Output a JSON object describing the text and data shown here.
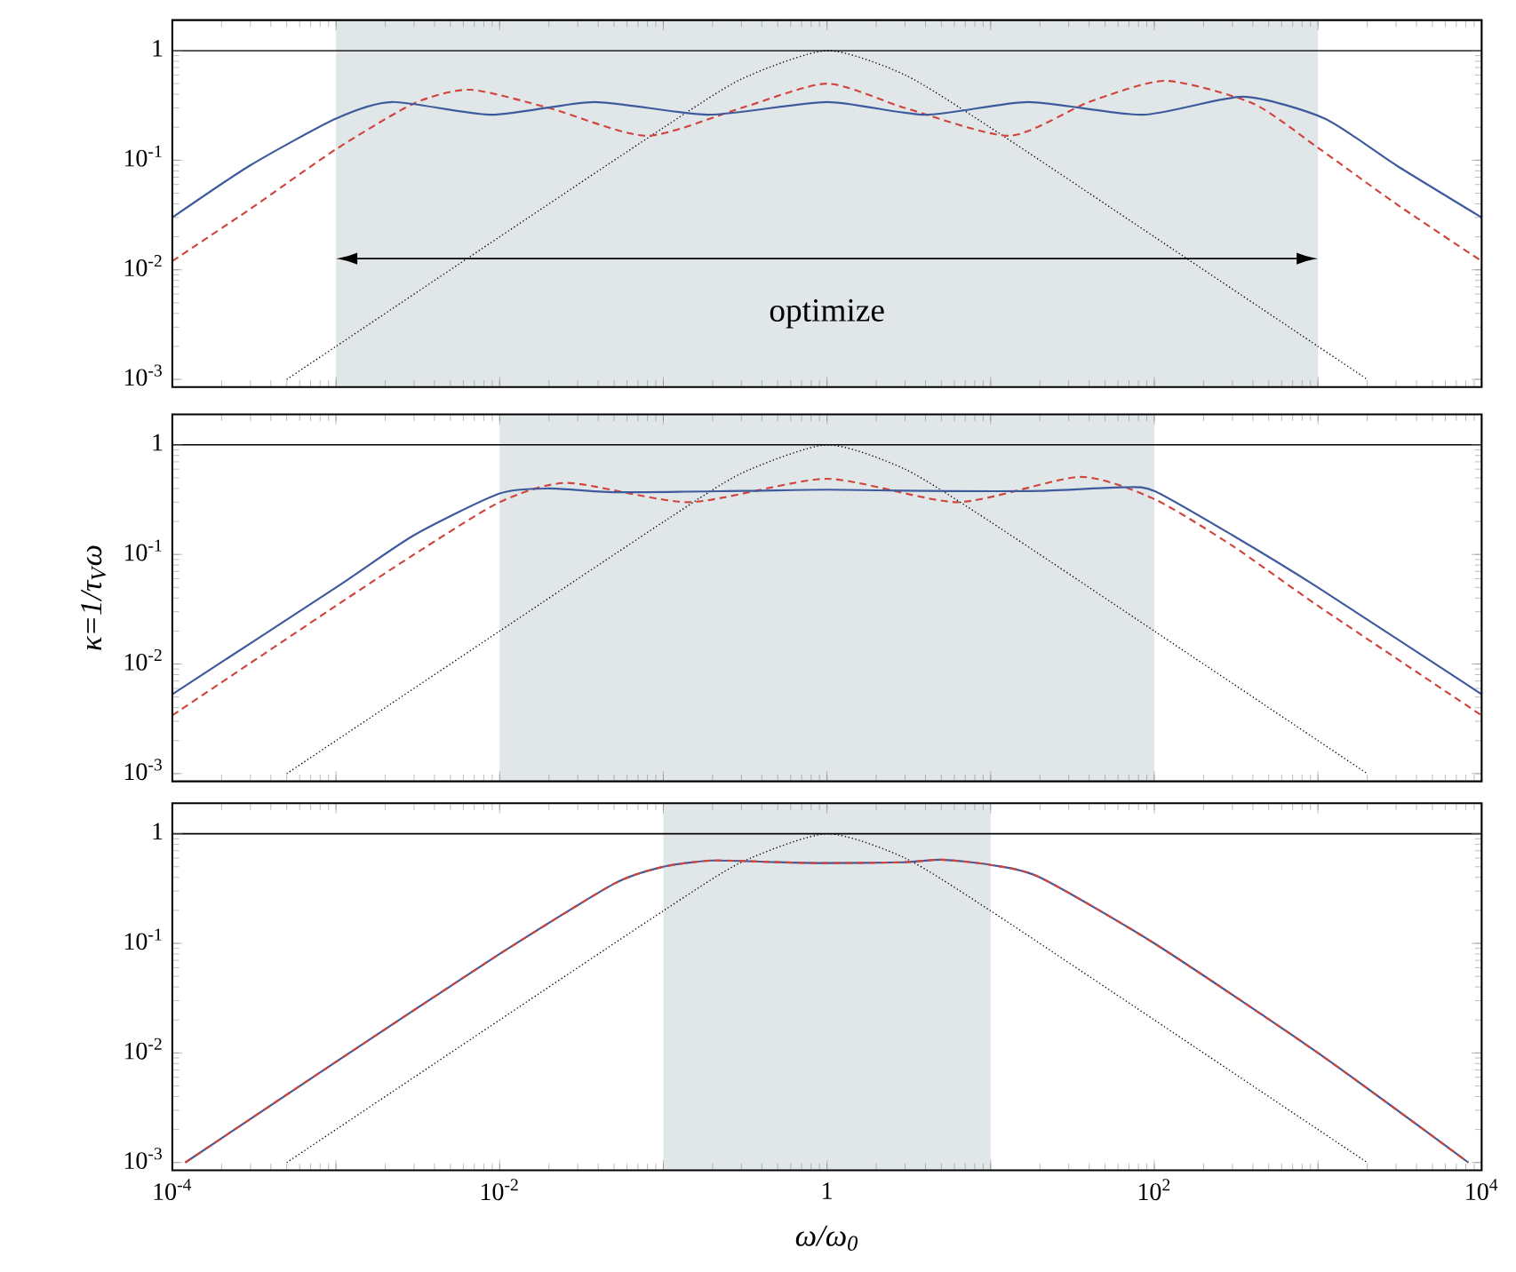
{
  "chart_data": [
    {
      "type": "line",
      "log": "xy",
      "xlim": [
        0.0001,
        10000
      ],
      "ylim": [
        0.00085,
        1.9
      ],
      "tick_labels": "y",
      "grid": false,
      "marker": "none",
      "xticks": [
        {
          "value": 0.0001,
          "label": null
        },
        {
          "value": 0.001,
          "label": null
        },
        {
          "value": 0.01,
          "label": null
        },
        {
          "value": 0.1,
          "label": null
        },
        {
          "value": 1,
          "label": null
        },
        {
          "value": 10,
          "label": null
        },
        {
          "value": 100,
          "label": null
        },
        {
          "value": 1000,
          "label": null
        },
        {
          "value": 10000,
          "label": null
        }
      ],
      "yticks": [
        {
          "value": 0.001,
          "label": "10$^{-3}$"
        },
        {
          "value": 0.01,
          "label": "10$^{-2}$"
        },
        {
          "value": 0.1,
          "label": "10$^{-1}$"
        },
        1
      ],
      "bands": [
        {
          "axis": "x",
          "from": 0.001,
          "to": 1000,
          "color": "#e1e6e9"
        }
      ],
      "ref_lines": [
        {
          "axis": "y",
          "value": 1,
          "color": "#000000",
          "line_style": "solid"
        }
      ],
      "annotations": [
        "optimize"
      ],
      "series": [
        {
          "color": "#000000",
          "line_style": "dotted",
          "x": [
            0.0005,
            0.001,
            0.01,
            0.1,
            0.3,
            1,
            3,
            10,
            100,
            1000,
            2000
          ],
          "values": [
            0.001,
            0.002,
            0.02,
            0.198,
            0.55,
            1,
            0.6,
            0.198,
            0.02,
            0.002,
            0.001
          ]
        },
        {
          "color": "#d0443c",
          "line_style": "dashed",
          "x": [
            0.0001,
            0.0003,
            0.001,
            0.003,
            0.0066,
            0.02,
            0.079,
            0.3,
            1,
            3,
            13,
            40,
            117,
            400,
            1000,
            3000,
            10000
          ],
          "values": [
            0.012,
            0.036,
            0.126,
            0.33,
            0.44,
            0.3,
            0.167,
            0.3,
            0.5,
            0.3,
            0.167,
            0.34,
            0.53,
            0.33,
            0.13,
            0.04,
            0.012
          ]
        },
        {
          "color": "#3c5a9c",
          "line_style": "solid",
          "x": [
            0.0001,
            0.0003,
            0.001,
            0.0022,
            0.009,
            0.038,
            0.19,
            1,
            4,
            17,
            85,
            350,
            1100,
            3000,
            10000
          ],
          "values": [
            0.03,
            0.09,
            0.24,
            0.34,
            0.26,
            0.34,
            0.26,
            0.34,
            0.26,
            0.34,
            0.26,
            0.38,
            0.24,
            0.09,
            0.03
          ]
        }
      ]
    },
    {
      "type": "line",
      "log": "xy",
      "xlim": [
        0.0001,
        10000
      ],
      "ylim": [
        0.00085,
        1.9
      ],
      "tick_labels": "y",
      "grid": false,
      "marker": "none",
      "ylabel": "κ=1/τ$_{V}$ω",
      "xticks": [
        {
          "value": 0.0001,
          "label": null
        },
        {
          "value": 0.001,
          "label": null
        },
        {
          "value": 0.01,
          "label": null
        },
        {
          "value": 0.1,
          "label": null
        },
        {
          "value": 1,
          "label": null
        },
        {
          "value": 10,
          "label": null
        },
        {
          "value": 100,
          "label": null
        },
        {
          "value": 1000,
          "label": null
        },
        {
          "value": 10000,
          "label": null
        }
      ],
      "yticks": [
        {
          "value": 0.001,
          "label": "10$^{-3}$"
        },
        {
          "value": 0.01,
          "label": "10$^{-2}$"
        },
        {
          "value": 0.1,
          "label": "10$^{-1}$"
        },
        1
      ],
      "bands": [
        {
          "axis": "x",
          "from": 0.01,
          "to": 100,
          "color": "#e1e6e9"
        }
      ],
      "ref_lines": [
        {
          "axis": "y",
          "value": 1,
          "color": "#000000",
          "line_style": "solid"
        }
      ],
      "series": [
        {
          "color": "#000000",
          "line_style": "dotted",
          "x": [
            0.0005,
            0.001,
            0.01,
            0.1,
            0.3,
            1,
            3,
            10,
            100,
            1000,
            2000
          ],
          "values": [
            0.001,
            0.002,
            0.02,
            0.198,
            0.55,
            1,
            0.6,
            0.198,
            0.02,
            0.002,
            0.001
          ]
        },
        {
          "color": "#d0443c",
          "line_style": "dashed",
          "x": [
            0.0001,
            0.001,
            0.003,
            0.01,
            0.026,
            0.145,
            1,
            6.3,
            35,
            100,
            300,
            1000,
            10000
          ],
          "values": [
            0.0034,
            0.034,
            0.1,
            0.3,
            0.45,
            0.3,
            0.49,
            0.3,
            0.51,
            0.32,
            0.12,
            0.034,
            0.0034
          ]
        },
        {
          "color": "#3c5a9c",
          "line_style": "solid",
          "x": [
            0.0001,
            0.001,
            0.003,
            0.01,
            0.02,
            0.05,
            0.3,
            1,
            4,
            20,
            63,
            100,
            300,
            1000,
            10000
          ],
          "values": [
            0.0053,
            0.05,
            0.15,
            0.36,
            0.4,
            0.37,
            0.38,
            0.39,
            0.38,
            0.38,
            0.41,
            0.38,
            0.15,
            0.05,
            0.0053
          ]
        }
      ]
    },
    {
      "type": "line",
      "log": "xy",
      "xlim": [
        0.0001,
        10000
      ],
      "ylim": [
        0.00085,
        1.9
      ],
      "grid": false,
      "marker": "none",
      "xlabel": "ω/ω$_{0}$",
      "xticks": [
        {
          "value": 0.0001,
          "label": "10$^{-4}$"
        },
        {
          "value": 0.001,
          "label": null
        },
        {
          "value": 0.01,
          "label": "10$^{-2}$"
        },
        {
          "value": 0.1,
          "label": null
        },
        1,
        {
          "value": 10,
          "label": null
        },
        {
          "value": 100,
          "label": "10$^{2}$"
        },
        {
          "value": 1000,
          "label": null
        },
        {
          "value": 10000,
          "label": "10$^{4}$"
        }
      ],
      "yticks": [
        {
          "value": 0.001,
          "label": "10$^{-3}$"
        },
        {
          "value": 0.01,
          "label": "10$^{-2}$"
        },
        {
          "value": 0.1,
          "label": "10$^{-1}$"
        },
        1
      ],
      "bands": [
        {
          "axis": "x",
          "from": 0.1,
          "to": 10,
          "color": "#e1e6e9"
        }
      ],
      "ref_lines": [
        {
          "axis": "y",
          "value": 1,
          "color": "#000000",
          "line_style": "solid"
        }
      ],
      "series": [
        {
          "color": "#000000",
          "line_style": "dotted",
          "x": [
            0.0005,
            0.001,
            0.01,
            0.1,
            0.3,
            1,
            3,
            10,
            100,
            1000,
            2000
          ],
          "values": [
            0.001,
            0.002,
            0.02,
            0.198,
            0.55,
            1,
            0.6,
            0.198,
            0.02,
            0.002,
            0.001
          ]
        },
        {
          "color": "#3c5a9c",
          "line_style": "solid",
          "x": [
            0.00012,
            0.001,
            0.01,
            0.05,
            0.1,
            0.2,
            0.5,
            1,
            3,
            5,
            10,
            20,
            100,
            1000,
            8300
          ],
          "values": [
            0.001,
            0.0083,
            0.08,
            0.35,
            0.5,
            0.57,
            0.55,
            0.54,
            0.55,
            0.58,
            0.52,
            0.4,
            0.1,
            0.01,
            0.001
          ]
        },
        {
          "color": "#d0443c",
          "line_style": "dashed",
          "x": [
            0.00012,
            0.001,
            0.01,
            0.05,
            0.1,
            0.2,
            0.5,
            1,
            3,
            5,
            10,
            20,
            100,
            1000,
            8300
          ],
          "values": [
            0.001,
            0.0083,
            0.08,
            0.35,
            0.5,
            0.57,
            0.55,
            0.54,
            0.55,
            0.58,
            0.52,
            0.4,
            0.1,
            0.01,
            0.001
          ]
        }
      ]
    }
  ]
}
